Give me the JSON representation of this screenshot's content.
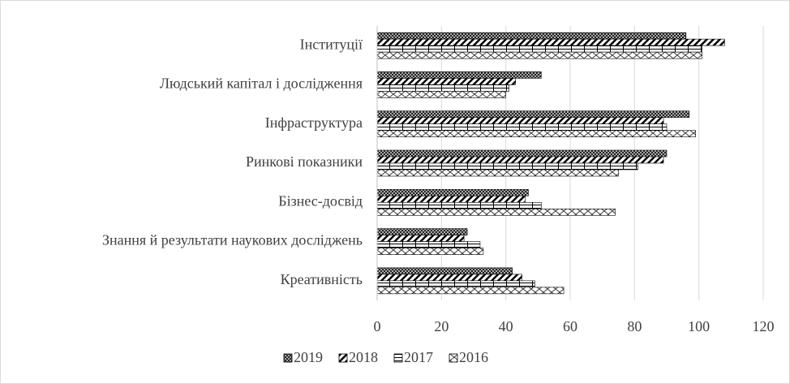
{
  "chart_data": {
    "type": "bar",
    "orientation": "horizontal",
    "categories": [
      "Інституції",
      "Людський капітал і дослідження",
      "Інфраструктура",
      "Ринкові показники",
      "Бізнес-досвід",
      "Знання й результати наукових досліджень",
      "Креативність"
    ],
    "series": [
      {
        "name": "2019",
        "color": "#000000",
        "values": [
          96,
          51,
          97,
          90,
          47,
          28,
          42
        ]
      },
      {
        "name": "2018",
        "color": "#000000",
        "values": [
          108,
          43,
          89,
          89,
          46,
          27,
          45
        ]
      },
      {
        "name": "2017",
        "color": "#000000",
        "values": [
          101,
          41,
          90,
          81,
          51,
          32,
          49
        ]
      },
      {
        "name": "2016",
        "color": "#000000",
        "values": [
          101,
          40,
          99,
          75,
          74,
          33,
          58
        ]
      }
    ],
    "xlim": [
      0,
      120
    ],
    "xticks": [
      0,
      20,
      40,
      60,
      80,
      100,
      120
    ],
    "grid": true,
    "legend": "bottom"
  }
}
